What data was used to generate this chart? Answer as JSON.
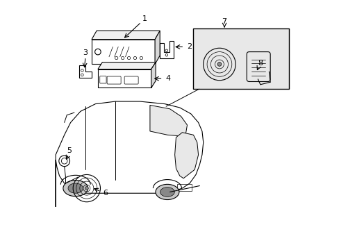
{
  "bg_color": "#ffffff",
  "line_color": "#000000",
  "shaded_box_color": "#e8e8e8",
  "figsize": [
    4.89,
    3.6
  ],
  "dpi": 100
}
